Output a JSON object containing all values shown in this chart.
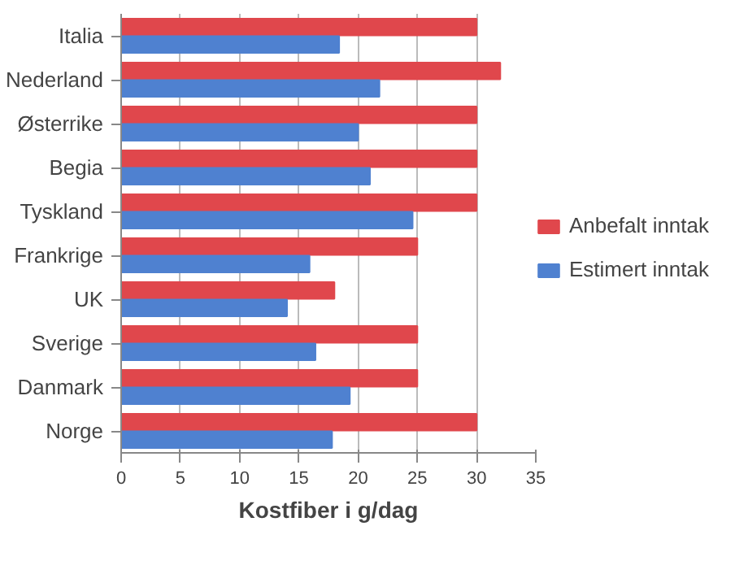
{
  "chart_data": {
    "type": "bar",
    "orientation": "horizontal",
    "xlabel": "Kostfiber i g/dag",
    "categories": [
      "Italia",
      "Nederland",
      "Østerrike",
      "Begia",
      "Tyskland",
      "Frankrige",
      "UK",
      "Sverige",
      "Danmark",
      "Norge"
    ],
    "series": [
      {
        "name": "Anbefalt inntak",
        "color": "#e0474c",
        "values": [
          30,
          32,
          30,
          30,
          30,
          25,
          18,
          25,
          25,
          30
        ]
      },
      {
        "name": "Estimert inntak",
        "color": "#4f81d0",
        "values": [
          18.4,
          21.8,
          20,
          21,
          24.6,
          15.9,
          14,
          16.4,
          19.3,
          17.8
        ]
      }
    ],
    "xlim": [
      0,
      35
    ],
    "xticks": [
      0,
      5,
      10,
      15,
      20,
      25,
      30,
      35
    ],
    "grid": "x",
    "legend": "right"
  }
}
